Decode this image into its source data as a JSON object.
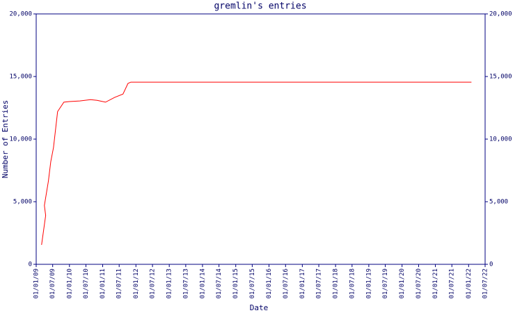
{
  "chart_data": {
    "type": "line",
    "title": "gremlin's entries",
    "x_label": "Date",
    "y_label": "Number of Entries",
    "x": [
      "01/03/09",
      "15/04/09",
      "01/04/09",
      "15/05/09",
      "10/06/09",
      "10/07/09",
      "24/08/09",
      "01/11/09",
      "01/01/10",
      "25/04/10",
      "20/08/10",
      "01/11/10",
      "01/02/11",
      "12/05/11",
      "12/08/11",
      "06/10/11",
      "06/11/11",
      "01/02/22"
    ],
    "series": [
      {
        "name": "entries",
        "color": "#ff0000",
        "values": [
          1550,
          3900,
          4700,
          6650,
          8200,
          9330,
          12200,
          12950,
          13000,
          13050,
          13150,
          13100,
          12950,
          13330,
          13600,
          14450,
          14550,
          14550
        ]
      }
    ],
    "xlim": [
      "01/01/09",
      "01/07/22"
    ],
    "xticks": [
      "01/01/09",
      "01/07/09",
      "01/01/10",
      "01/07/10",
      "01/01/11",
      "01/07/11",
      "01/01/12",
      "01/07/12",
      "01/01/13",
      "01/07/13",
      "01/01/14",
      "01/07/14",
      "01/01/15",
      "01/07/15",
      "01/01/16",
      "01/07/16",
      "01/01/17",
      "01/07/17",
      "01/01/18",
      "01/07/18",
      "01/01/19",
      "01/07/19",
      "01/01/20",
      "01/07/20",
      "01/01/21",
      "01/07/21",
      "01/01/22",
      "01/07/22"
    ],
    "ylim": [
      0,
      20000
    ],
    "yticks": [
      0,
      {
        "value": 5000,
        "label": "5,000"
      },
      {
        "value": 10000,
        "label": "10,000"
      },
      {
        "value": 15000,
        "label": "15,000"
      },
      {
        "value": 20000,
        "label": "20,000"
      }
    ],
    "axis_color": "#000080"
  }
}
